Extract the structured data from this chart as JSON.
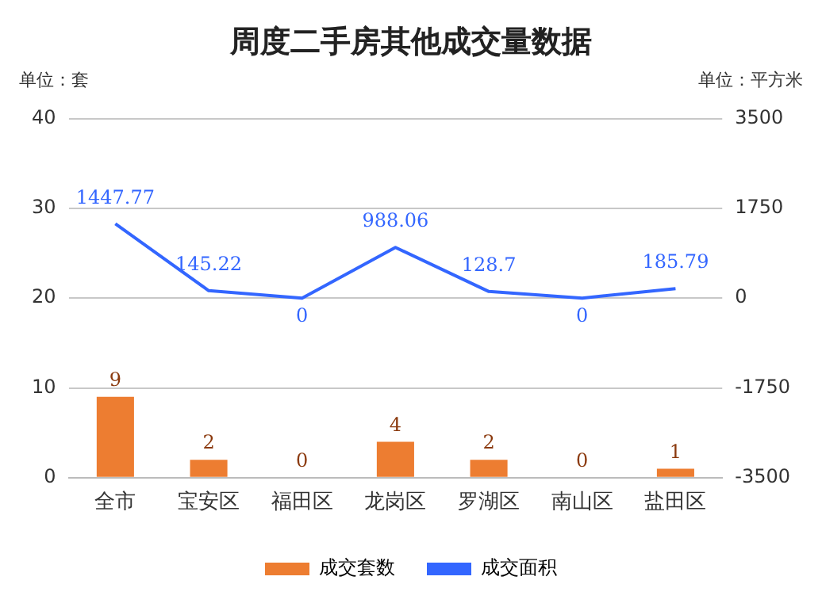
{
  "chart_data": {
    "type": "bar",
    "title": "周度二手房其他成交量数据",
    "ylabel": "单位：套",
    "y2label": "单位：平方米",
    "categories": [
      "全市",
      "宝安区",
      "福田区",
      "龙岗区",
      "罗湖区",
      "南山区",
      "盐田区"
    ],
    "series": [
      {
        "name": "成交套数",
        "color": "#ed7d31",
        "values": [
          9,
          2,
          0,
          4,
          2,
          0,
          1
        ]
      },
      {
        "name": "成交面积",
        "type": "line",
        "axis": "y2",
        "color": "#3366ff",
        "values": [
          1447.77,
          145.22,
          0,
          988.06,
          128.7,
          0,
          185.79
        ]
      }
    ],
    "ylim": [
      0,
      40
    ],
    "yticks": [
      0,
      10,
      20,
      30,
      40
    ],
    "y2lim": [
      -3500,
      3500
    ],
    "y2ticks": [
      -3500,
      -1750,
      0,
      1750,
      3500
    ],
    "grid": "y",
    "legend": "bottom",
    "data_labels": true,
    "marker": "none",
    "line_style": "solid"
  }
}
